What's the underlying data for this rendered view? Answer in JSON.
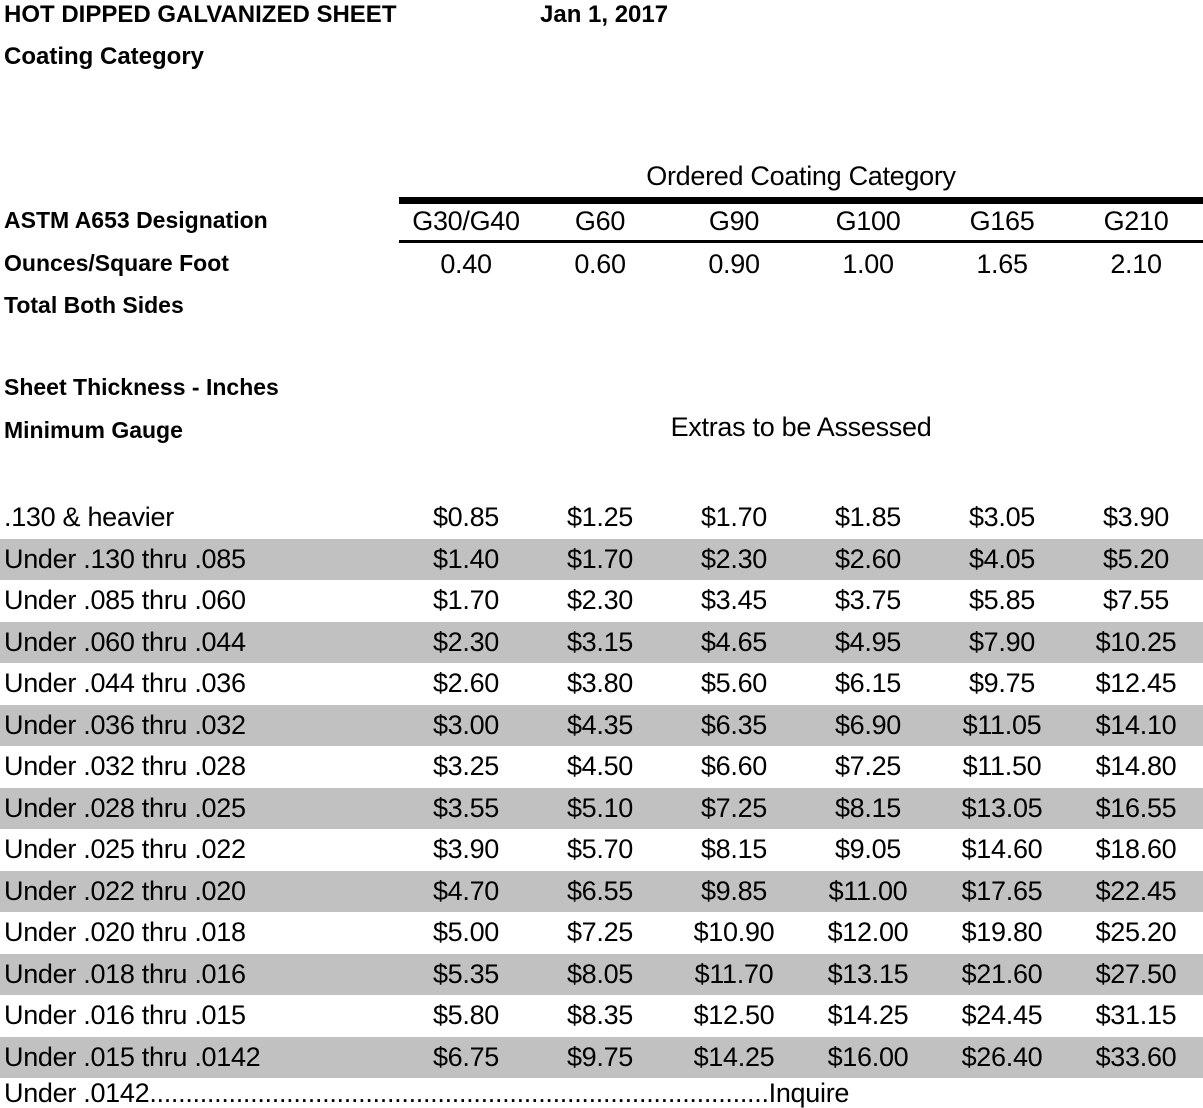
{
  "header": {
    "title": "HOT DIPPED GALVANIZED SHEET",
    "date": "Jan 1, 2017",
    "subtitle": "Coating Category"
  },
  "coating_table": {
    "group_header": "Ordered Coating Category",
    "designation_label": "ASTM A653 Designation",
    "ounces_label": "Ounces/Square Foot",
    "total_label": "Total Both Sides",
    "designations": [
      "G30/G40",
      "G60",
      "G90",
      "G100",
      "G165",
      "G210"
    ],
    "ounces": [
      "0.40",
      "0.60",
      "0.90",
      "1.00",
      "1.65",
      "2.10"
    ]
  },
  "extras_table": {
    "thickness_label": "Sheet Thickness - Inches",
    "gauge_label": "Minimum Gauge",
    "extras_header": "Extras to be Assessed",
    "rows": [
      {
        "thickness": ".130 & heavier",
        "prices": [
          "$0.85",
          "$1.25",
          "$1.70",
          "$1.85",
          "$3.05",
          "$3.90"
        ],
        "shaded": false
      },
      {
        "thickness": "Under .130 thru .085",
        "prices": [
          "$1.40",
          "$1.70",
          "$2.30",
          "$2.60",
          "$4.05",
          "$5.20"
        ],
        "shaded": true
      },
      {
        "thickness": "Under .085 thru .060",
        "prices": [
          "$1.70",
          "$2.30",
          "$3.45",
          "$3.75",
          "$5.85",
          "$7.55"
        ],
        "shaded": false
      },
      {
        "thickness": "Under .060 thru .044",
        "prices": [
          "$2.30",
          "$3.15",
          "$4.65",
          "$4.95",
          "$7.90",
          "$10.25"
        ],
        "shaded": true
      },
      {
        "thickness": "Under .044 thru .036",
        "prices": [
          "$2.60",
          "$3.80",
          "$5.60",
          "$6.15",
          "$9.75",
          "$12.45"
        ],
        "shaded": false
      },
      {
        "thickness": "Under .036 thru .032",
        "prices": [
          "$3.00",
          "$4.35",
          "$6.35",
          "$6.90",
          "$11.05",
          "$14.10"
        ],
        "shaded": true
      },
      {
        "thickness": "Under .032 thru .028",
        "prices": [
          "$3.25",
          "$4.50",
          "$6.60",
          "$7.25",
          "$11.50",
          "$14.80"
        ],
        "shaded": false
      },
      {
        "thickness": "Under .028 thru .025",
        "prices": [
          "$3.55",
          "$5.10",
          "$7.25",
          "$8.15",
          "$13.05",
          "$16.55"
        ],
        "shaded": true
      },
      {
        "thickness": "Under .025 thru .022",
        "prices": [
          "$3.90",
          "$5.70",
          "$8.15",
          "$9.05",
          "$14.60",
          "$18.60"
        ],
        "shaded": false
      },
      {
        "thickness": "Under .022 thru .020",
        "prices": [
          "$4.70",
          "$6.55",
          "$9.85",
          "$11.00",
          "$17.65",
          "$22.45"
        ],
        "shaded": true
      },
      {
        "thickness": "Under .020 thru .018",
        "prices": [
          "$5.00",
          "$7.25",
          "$10.90",
          "$12.00",
          "$19.80",
          "$25.20"
        ],
        "shaded": false
      },
      {
        "thickness": "Under .018 thru .016",
        "prices": [
          "$5.35",
          "$8.05",
          "$11.70",
          "$13.15",
          "$21.60",
          "$27.50"
        ],
        "shaded": true
      },
      {
        "thickness": "Under .016 thru .015",
        "prices": [
          "$5.80",
          "$8.35",
          "$12.50",
          "$14.25",
          "$24.45",
          "$31.15"
        ],
        "shaded": false
      },
      {
        "thickness": "Under .015 thru .0142",
        "prices": [
          "$6.75",
          "$9.75",
          "$14.25",
          "$16.00",
          "$26.40",
          "$33.60"
        ],
        "shaded": true
      }
    ],
    "footer": {
      "label": "Under .0142",
      "dots": "......................................................................................",
      "value": "Inquire"
    }
  },
  "colors": {
    "stripe": "#c1c1c1",
    "rule": "#000000",
    "text": "#000000",
    "background": "#ffffff"
  }
}
